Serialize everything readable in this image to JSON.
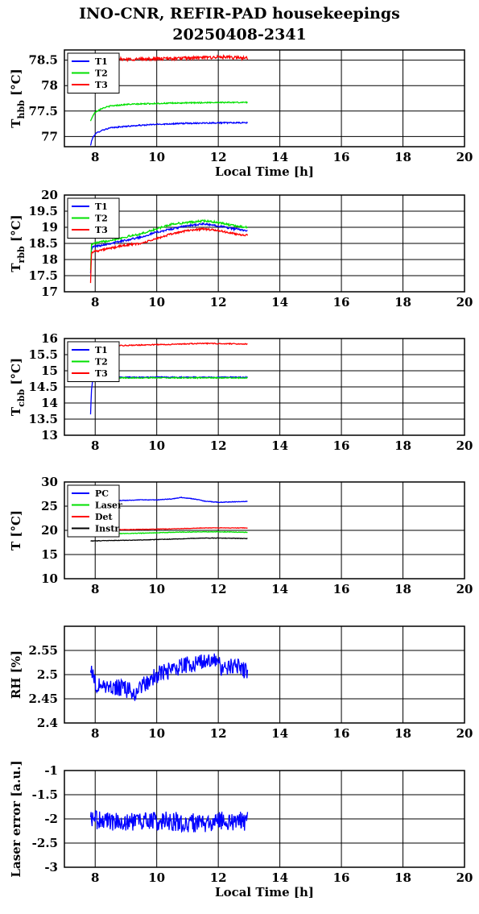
{
  "header": {
    "title_line1": "INO-CNR, REFIR-PAD housekeepings",
    "title_line2": "20250408-2341"
  },
  "colors": {
    "blue": "#0000ff",
    "green": "#00e000",
    "red": "#ff0000",
    "black": "#000000"
  },
  "chart_data": [
    {
      "type": "line",
      "ylabel": "T",
      "ylabel_sub": "hbb",
      "ylabel_unit": " [°C]",
      "xlabel": "Local Time [h]",
      "xlim": [
        7,
        20
      ],
      "ylim": [
        76.8,
        78.7
      ],
      "xticks": [
        8,
        10,
        12,
        14,
        16,
        18,
        20
      ],
      "yticks": [
        77,
        77.5,
        78,
        78.5
      ],
      "ytick_labels": [
        "77",
        "77.5",
        "78",
        "78.5"
      ],
      "grid": true,
      "legend": "top-left",
      "series": [
        {
          "name": "T1",
          "color": "blue",
          "noise": 0.012,
          "x": [
            7.85,
            7.9,
            8.0,
            8.2,
            8.5,
            9.0,
            9.5,
            10.0,
            11.0,
            12.0,
            12.95
          ],
          "y": [
            76.82,
            76.95,
            77.05,
            77.12,
            77.17,
            77.2,
            77.22,
            77.24,
            77.26,
            77.27,
            77.27
          ]
        },
        {
          "name": "T2",
          "color": "green",
          "noise": 0.012,
          "x": [
            7.85,
            7.9,
            8.0,
            8.2,
            8.5,
            9.0,
            9.5,
            10.0,
            11.0,
            12.0,
            12.95
          ],
          "y": [
            77.3,
            77.38,
            77.48,
            77.55,
            77.6,
            77.63,
            77.64,
            77.65,
            77.66,
            77.67,
            77.67
          ]
        },
        {
          "name": "T3",
          "color": "red",
          "noise": 0.03,
          "x": [
            7.85,
            8.5,
            9.5,
            10.5,
            11.5,
            12.0,
            12.95
          ],
          "y": [
            78.5,
            78.52,
            78.52,
            78.53,
            78.55,
            78.56,
            78.54
          ]
        }
      ]
    },
    {
      "type": "line",
      "ylabel": "T",
      "ylabel_sub": "rbb",
      "ylabel_unit": " [°C]",
      "xlabel": "",
      "xlim": [
        7,
        20
      ],
      "ylim": [
        17,
        20
      ],
      "xticks": [
        8,
        10,
        12,
        14,
        16,
        18,
        20
      ],
      "yticks": [
        17,
        17.5,
        18,
        18.5,
        19,
        19.5,
        20
      ],
      "ytick_labels": [
        "17",
        "17.5",
        "18",
        "18.5",
        "19",
        "19.5",
        "20"
      ],
      "grid": true,
      "legend": "top-left",
      "series": [
        {
          "name": "T1",
          "color": "blue",
          "noise": 0.03,
          "x": [
            7.85,
            7.88,
            7.95,
            8.5,
            9.0,
            9.5,
            10.0,
            10.5,
            11.0,
            11.5,
            12.0,
            12.5,
            12.95
          ],
          "y": [
            17.6,
            18.35,
            18.4,
            18.5,
            18.6,
            18.7,
            18.85,
            18.95,
            19.05,
            19.1,
            19.05,
            18.95,
            18.9
          ]
        },
        {
          "name": "T2",
          "color": "green",
          "noise": 0.03,
          "x": [
            7.85,
            7.88,
            7.95,
            8.5,
            9.0,
            9.5,
            10.0,
            10.5,
            11.0,
            11.5,
            12.0,
            12.5,
            12.95
          ],
          "y": [
            17.7,
            18.45,
            18.5,
            18.6,
            18.7,
            18.8,
            18.95,
            19.1,
            19.15,
            19.2,
            19.15,
            19.05,
            19.0
          ]
        },
        {
          "name": "T3",
          "color": "red",
          "noise": 0.03,
          "x": [
            7.85,
            7.88,
            7.95,
            8.5,
            9.0,
            9.5,
            10.0,
            10.5,
            11.0,
            11.5,
            12.0,
            12.5,
            12.95
          ],
          "y": [
            17.3,
            18.2,
            18.25,
            18.35,
            18.45,
            18.5,
            18.65,
            18.8,
            18.9,
            18.95,
            18.9,
            18.8,
            18.75
          ]
        }
      ]
    },
    {
      "type": "line",
      "ylabel": "T",
      "ylabel_sub": "cbb",
      "ylabel_unit": " [°C]",
      "xlabel": "",
      "xlim": [
        7,
        20
      ],
      "ylim": [
        13,
        16
      ],
      "xticks": [
        8,
        10,
        12,
        14,
        16,
        18,
        20
      ],
      "yticks": [
        13,
        13.5,
        14,
        14.5,
        15,
        15.5,
        16
      ],
      "ytick_labels": [
        "13",
        "13.5",
        "14",
        "14.5",
        "15",
        "15.5",
        "16"
      ],
      "grid": true,
      "legend": "top-left",
      "series": [
        {
          "name": "T1",
          "color": "blue",
          "noise": 0.015,
          "x": [
            7.85,
            7.88,
            7.92,
            8.0,
            8.5,
            10.0,
            12.0,
            12.95
          ],
          "y": [
            13.65,
            14.4,
            14.75,
            14.78,
            14.8,
            14.8,
            14.8,
            14.8
          ]
        },
        {
          "name": "T2",
          "color": "green",
          "noise": 0.015,
          "x": [
            7.85,
            8.0,
            8.5,
            10.0,
            12.0,
            12.95
          ],
          "y": [
            14.75,
            14.77,
            14.78,
            14.78,
            14.78,
            14.78
          ]
        },
        {
          "name": "T3",
          "color": "red",
          "noise": 0.015,
          "x": [
            7.85,
            8.5,
            9.5,
            10.5,
            11.5,
            12.95
          ],
          "y": [
            15.75,
            15.77,
            15.8,
            15.82,
            15.85,
            15.83
          ]
        }
      ]
    },
    {
      "type": "line",
      "ylabel": "T [°C]",
      "ylabel_sub": "",
      "ylabel_unit": "",
      "xlabel": "",
      "xlim": [
        7,
        20
      ],
      "ylim": [
        10,
        30
      ],
      "xticks": [
        8,
        10,
        12,
        14,
        16,
        18,
        20
      ],
      "yticks": [
        10,
        15,
        20,
        25,
        30
      ],
      "ytick_labels": [
        "10",
        "15",
        "20",
        "25",
        "30"
      ],
      "grid": true,
      "legend": "top-left",
      "series": [
        {
          "name": "PC",
          "color": "blue",
          "noise": 0.06,
          "x": [
            7.85,
            8.5,
            9.0,
            9.5,
            10.0,
            10.5,
            10.8,
            11.2,
            11.6,
            12.0,
            12.5,
            12.95
          ],
          "y": [
            26.0,
            26.1,
            26.2,
            26.3,
            26.3,
            26.5,
            26.8,
            26.5,
            26.0,
            25.8,
            25.9,
            26.0
          ]
        },
        {
          "name": "Laser",
          "color": "green",
          "noise": 0.06,
          "x": [
            7.85,
            8.5,
            9.5,
            10.5,
            11.5,
            12.0,
            12.95
          ],
          "y": [
            19.2,
            19.3,
            19.4,
            19.6,
            19.7,
            19.7,
            19.6
          ]
        },
        {
          "name": "Det",
          "color": "red",
          "noise": 0.05,
          "x": [
            7.85,
            8.5,
            9.5,
            10.5,
            11.5,
            12.0,
            12.95
          ],
          "y": [
            20.0,
            20.1,
            20.2,
            20.3,
            20.5,
            20.5,
            20.5
          ]
        },
        {
          "name": "Instr",
          "color": "black",
          "noise": 0.05,
          "x": [
            7.85,
            8.5,
            9.5,
            10.5,
            11.5,
            12.0,
            12.95
          ],
          "y": [
            17.8,
            17.9,
            18.0,
            18.2,
            18.4,
            18.4,
            18.3
          ]
        }
      ]
    },
    {
      "type": "line",
      "ylabel": "RH [%]",
      "ylabel_sub": "",
      "ylabel_unit": "",
      "xlabel": "",
      "xlim": [
        7,
        20
      ],
      "ylim": [
        2.4,
        2.6
      ],
      "xticks": [
        8,
        10,
        12,
        14,
        16,
        18,
        20
      ],
      "yticks": [
        2.4,
        2.45,
        2.5,
        2.55
      ],
      "ytick_labels": [
        "2.4",
        "2.45",
        "2.5",
        "2.55"
      ],
      "grid": true,
      "legend": "none",
      "series": [
        {
          "name": "",
          "color": "blue",
          "noise": 0.018,
          "x": [
            7.85,
            8.0,
            8.5,
            9.0,
            9.3,
            9.6,
            10.0,
            10.5,
            11.0,
            11.5,
            11.8,
            12.2,
            12.6,
            12.95
          ],
          "y": [
            2.52,
            2.48,
            2.475,
            2.47,
            2.46,
            2.48,
            2.5,
            2.51,
            2.52,
            2.53,
            2.53,
            2.51,
            2.52,
            2.505
          ]
        }
      ]
    },
    {
      "type": "line",
      "ylabel": "Laser error [a.u.]",
      "ylabel_sub": "",
      "ylabel_unit": "",
      "xlabel": "Local Time [h]",
      "xlim": [
        7,
        20
      ],
      "ylim": [
        -3,
        -1
      ],
      "xticks": [
        8,
        10,
        12,
        14,
        16,
        18,
        20
      ],
      "yticks": [
        -3,
        -2.5,
        -2,
        -1.5,
        -1
      ],
      "ytick_labels": [
        "-3",
        "-2.5",
        "-2",
        "-1.5",
        "-1"
      ],
      "grid": true,
      "legend": "none",
      "series": [
        {
          "name": "",
          "color": "blue",
          "noise": 0.2,
          "x": [
            7.85,
            8.5,
            9.5,
            10.5,
            11.5,
            12.0,
            12.95
          ],
          "y": [
            -2.0,
            -2.05,
            -2.05,
            -2.05,
            -2.1,
            -2.05,
            -2.05
          ]
        }
      ]
    }
  ]
}
